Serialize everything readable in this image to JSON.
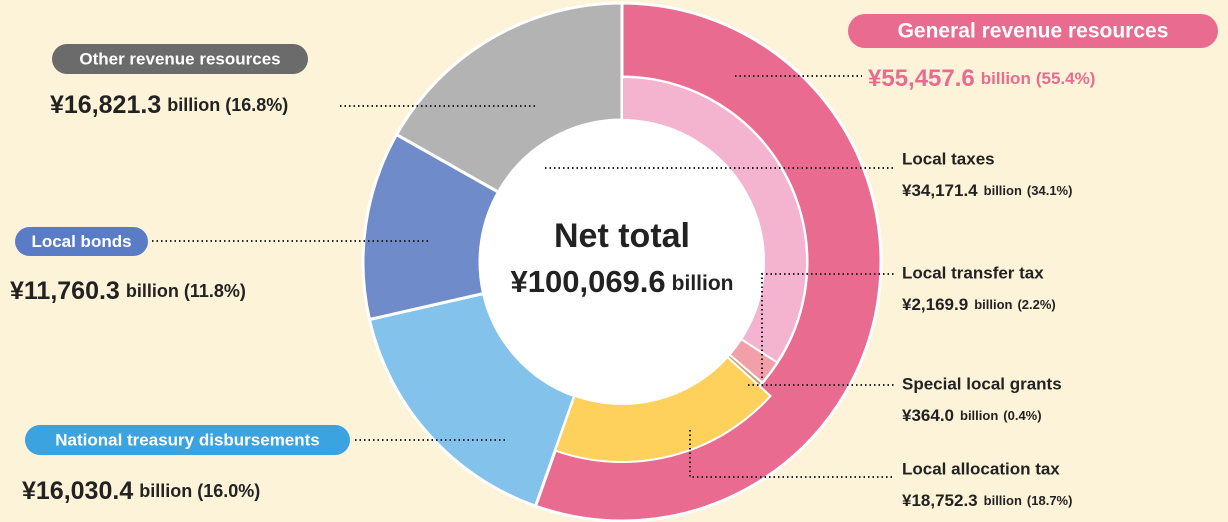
{
  "chart_data": {
    "type": "donut",
    "center_title": "Net total",
    "total_label": "¥100,069.6",
    "unit": "billion",
    "outer": {
      "categories": [
        "General revenue resources",
        "National treasury disbursements",
        "Local bonds",
        "Other revenue resources"
      ],
      "values": [
        55457.6,
        16030.4,
        11760.3,
        16821.3
      ],
      "value_labels": [
        "¥55,457.6",
        "¥16,030.4",
        "¥11,760.3",
        "¥16,821.3"
      ],
      "percent_labels": [
        "(55.4%)",
        "(16.0%)",
        "(11.8%)",
        "(16.8%)"
      ],
      "colors": [
        "#e96b8f",
        "#83c2eb",
        "#6f8bca",
        "#b3b3b3"
      ]
    },
    "inner": {
      "categories": [
        "Local taxes",
        "Local transfer tax",
        "Special local grants",
        "Local allocation tax"
      ],
      "values": [
        34171.4,
        2169.9,
        364.0,
        18752.3
      ],
      "value_labels": [
        "¥34,171.4",
        "¥2,169.9",
        "¥364.0",
        "¥18,752.3"
      ],
      "percent_labels": [
        "(34.1%)",
        "(2.2%)",
        "(0.4%)",
        "(18.7%)"
      ],
      "colors": [
        "#f4b4cf",
        "#f19fa9",
        "#c9a06e",
        "#fdd15b"
      ]
    }
  }
}
